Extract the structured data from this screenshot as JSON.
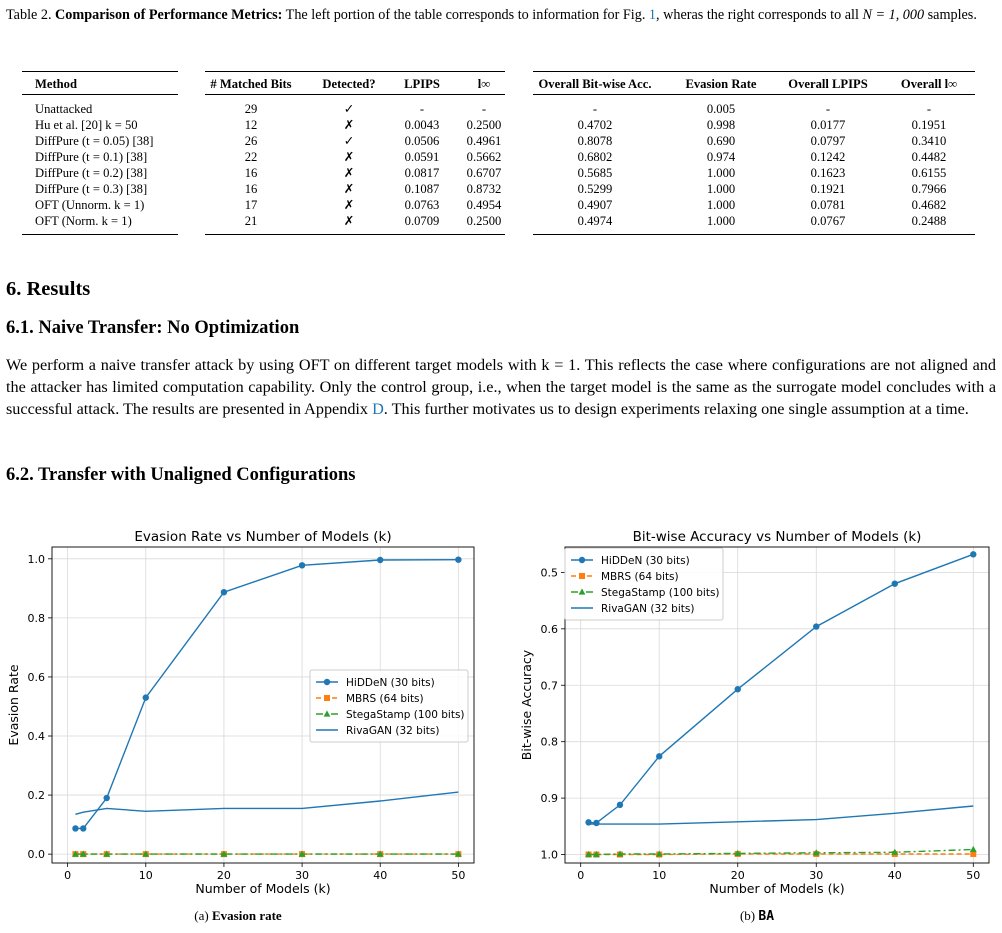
{
  "caption": {
    "label": "Table 2.",
    "title": "Comparison of Performance Metrics:",
    "text_a": " The left portion of the table corresponds to information for Fig. ",
    "fig_ref": "1",
    "text_b": ", wheras the right corresponds to all ",
    "math": "N = 1, 000",
    "text_c": " samples."
  },
  "table": {
    "headers": [
      "Method",
      "# Matched Bits",
      "Detected?",
      "LPIPS",
      "l∞",
      "Overall Bit-wise Acc.",
      "Evasion Rate",
      "Overall LPIPS",
      "Overall l∞"
    ],
    "rows": [
      {
        "method": "Unattacked",
        "ref": "",
        "matched": "29",
        "detected": "✓",
        "lpips": "-",
        "linf": "-",
        "overall_ba": "-",
        "evasion": "0.005",
        "overall_lpips": "-",
        "overall_linf": "-"
      },
      {
        "method": "Hu et al. [20] k = 50",
        "ref": "",
        "matched": "12",
        "detected": "✗",
        "lpips": "0.0043",
        "linf": "0.2500",
        "overall_ba": "0.4702",
        "evasion": "0.998",
        "overall_lpips": "0.0177",
        "overall_linf": "0.1951"
      },
      {
        "method": "DiffPure (t = 0.05) [38]",
        "ref": "",
        "matched": "26",
        "detected": "✓",
        "lpips": "0.0506",
        "linf": "0.4961",
        "overall_ba": "0.8078",
        "evasion": "0.690",
        "overall_lpips": "0.0797",
        "overall_linf": "0.3410"
      },
      {
        "method": "DiffPure (t = 0.1) [38]",
        "ref": "",
        "matched": "22",
        "detected": "✗",
        "lpips": "0.0591",
        "linf": "0.5662",
        "overall_ba": "0.6802",
        "evasion": "0.974",
        "overall_lpips": "0.1242",
        "overall_linf": "0.4482"
      },
      {
        "method": "DiffPure (t = 0.2) [38]",
        "ref": "",
        "matched": "16",
        "detected": "✗",
        "lpips": "0.0817",
        "linf": "0.6707",
        "overall_ba": "0.5685",
        "evasion": "1.000",
        "overall_lpips": "0.1623",
        "overall_linf": "0.6155"
      },
      {
        "method": "DiffPure (t = 0.3) [38]",
        "ref": "",
        "matched": "16",
        "detected": "✗",
        "lpips": "0.1087",
        "linf": "0.8732",
        "overall_ba": "0.5299",
        "evasion": "1.000",
        "overall_lpips": "0.1921",
        "overall_linf": "0.7966"
      },
      {
        "method": "OFT (Unnorm. k = 1)",
        "ref": "",
        "matched": "17",
        "detected": "✗",
        "lpips": "0.0763",
        "linf": "0.4954",
        "overall_ba": "0.4907",
        "evasion": "1.000",
        "overall_lpips": "0.0781",
        "overall_linf": "0.4682"
      },
      {
        "method": "OFT (Norm. k = 1)",
        "ref": "",
        "matched": "21",
        "detected": "✗",
        "lpips": "0.0709",
        "linf": "0.2500",
        "overall_ba": "0.4974",
        "evasion": "1.000",
        "overall_lpips": "0.0767",
        "overall_linf": "0.2488"
      }
    ]
  },
  "section": {
    "title": "6. Results",
    "sub1": "6.1. Naive Transfer: No Optimization",
    "para_a": "We perform a naive transfer attack by using OFT on different target models with k = 1. This reflects the case where configurations are not aligned and the attacker has limited computation capability. Only the control group, i.e., when the target model is the same as the surrogate model concludes with a successful attack. The results are presented in Appendix ",
    "para_ref": "D",
    "para_b": ". This further motivates us to design experiments relaxing one single assumption at a time.",
    "sub2": "6.2. Transfer with Unaligned Configurations"
  },
  "subcaptions": {
    "a_prefix": "(a) ",
    "a_bold": "Evasion rate",
    "b_prefix": "(b) ",
    "b_mono": "BA"
  },
  "chart_data": [
    {
      "type": "line",
      "title": "Evasion Rate vs Number of Models (k)",
      "xlabel": "Number of Models (k)",
      "ylabel": "Evasion Rate",
      "xlim": [
        -2,
        52
      ],
      "ylim": [
        -0.03,
        1.04
      ],
      "xticks": [
        0,
        10,
        20,
        30,
        40,
        50
      ],
      "yticks": [
        0.0,
        0.2,
        0.4,
        0.6,
        0.8,
        1.0
      ],
      "ytick_labels": [
        "0.0",
        "0.2",
        "0.4",
        "0.6",
        "0.8",
        "1.0"
      ],
      "grid": true,
      "legend": "center-right",
      "series": [
        {
          "name": "HiDDeN (30 bits)",
          "color": "#1f77b4",
          "marker": "circle",
          "dash": "solid",
          "x": [
            1,
            2,
            5,
            10,
            20,
            30,
            40,
            50
          ],
          "y": [
            0.087,
            0.087,
            0.19,
            0.53,
            0.887,
            0.978,
            0.996,
            0.997
          ]
        },
        {
          "name": "MBRS (64 bits)",
          "color": "#ff7f0e",
          "marker": "square",
          "dash": "dashed",
          "x": [
            1,
            2,
            5,
            10,
            20,
            30,
            40,
            50
          ],
          "y": [
            0.0,
            0.0,
            0.0,
            0.0,
            0.0,
            0.0,
            0.0,
            0.0
          ]
        },
        {
          "name": "StegaStamp (100 bits)",
          "color": "#2ca02c",
          "marker": "triangle",
          "dash": "dashdot",
          "x": [
            1,
            2,
            5,
            10,
            20,
            30,
            40,
            50
          ],
          "y": [
            0.0,
            0.0,
            0.0,
            0.0,
            0.0,
            0.0,
            0.0,
            0.0
          ]
        },
        {
          "name": "RivaGAN (32 bits)",
          "color": "#1f77b4",
          "marker": "none",
          "dash": "solid",
          "x": [
            1,
            2,
            5,
            10,
            20,
            30,
            40,
            50
          ],
          "y": [
            0.135,
            0.142,
            0.155,
            0.145,
            0.155,
            0.155,
            0.18,
            0.21
          ]
        }
      ]
    },
    {
      "type": "line",
      "title": "Bit-wise Accuracy vs Number of Models (k)",
      "xlabel": "Number of Models (k)",
      "ylabel": "Bit-wise Accuracy",
      "xlim": [
        -2,
        52
      ],
      "ylim": [
        1.015,
        0.455
      ],
      "inverted_y": true,
      "xticks": [
        0,
        10,
        20,
        30,
        40,
        50
      ],
      "yticks": [
        0.5,
        0.6,
        0.7,
        0.8,
        0.9,
        1.0
      ],
      "ytick_labels": [
        "0.5",
        "0.6",
        "0.7",
        "0.8",
        "0.9",
        "1.0"
      ],
      "grid": true,
      "legend": "upper-left",
      "series": [
        {
          "name": "HiDDeN (30 bits)",
          "color": "#1f77b4",
          "marker": "circle",
          "dash": "solid",
          "x": [
            1,
            2,
            5,
            10,
            20,
            30,
            40,
            50
          ],
          "y": [
            0.943,
            0.944,
            0.912,
            0.826,
            0.707,
            0.596,
            0.52,
            0.468
          ]
        },
        {
          "name": "MBRS (64 bits)",
          "color": "#ff7f0e",
          "marker": "square",
          "dash": "dashed",
          "x": [
            1,
            2,
            5,
            10,
            20,
            30,
            40,
            50
          ],
          "y": [
            1.0,
            1.0,
            1.0,
            1.0,
            0.999,
            0.999,
            0.999,
            0.999
          ]
        },
        {
          "name": "StegaStamp (100 bits)",
          "color": "#2ca02c",
          "marker": "triangle",
          "dash": "dashdot",
          "x": [
            1,
            2,
            5,
            10,
            20,
            30,
            40,
            50
          ],
          "y": [
            1.0,
            1.0,
            0.999,
            0.999,
            0.998,
            0.997,
            0.996,
            0.991
          ]
        },
        {
          "name": "RivaGAN (32 bits)",
          "color": "#1f77b4",
          "marker": "none",
          "dash": "solid",
          "x": [
            1,
            2,
            5,
            10,
            20,
            30,
            40,
            50
          ],
          "y": [
            0.946,
            0.946,
            0.946,
            0.946,
            0.942,
            0.938,
            0.927,
            0.914
          ]
        }
      ]
    }
  ]
}
